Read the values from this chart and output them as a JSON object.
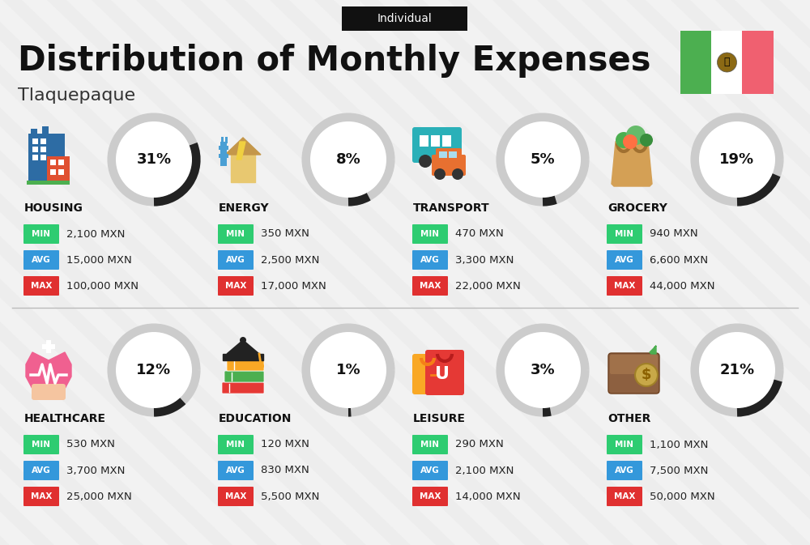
{
  "title": "Distribution of Monthly Expenses",
  "subtitle": "Individual",
  "city": "Tlaquepaque",
  "bg_color": "#f2f2f2",
  "categories": [
    {
      "name": "HOUSING",
      "pct": 31,
      "icon_type": "housing",
      "min": "2,100 MXN",
      "avg": "15,000 MXN",
      "max": "100,000 MXN",
      "row": 0,
      "col": 0
    },
    {
      "name": "ENERGY",
      "pct": 8,
      "icon_type": "energy",
      "min": "350 MXN",
      "avg": "2,500 MXN",
      "max": "17,000 MXN",
      "row": 0,
      "col": 1
    },
    {
      "name": "TRANSPORT",
      "pct": 5,
      "icon_type": "transport",
      "min": "470 MXN",
      "avg": "3,300 MXN",
      "max": "22,000 MXN",
      "row": 0,
      "col": 2
    },
    {
      "name": "GROCERY",
      "pct": 19,
      "icon_type": "grocery",
      "min": "940 MXN",
      "avg": "6,600 MXN",
      "max": "44,000 MXN",
      "row": 0,
      "col": 3
    },
    {
      "name": "HEALTHCARE",
      "pct": 12,
      "icon_type": "healthcare",
      "min": "530 MXN",
      "avg": "3,700 MXN",
      "max": "25,000 MXN",
      "row": 1,
      "col": 0
    },
    {
      "name": "EDUCATION",
      "pct": 1,
      "icon_type": "education",
      "min": "120 MXN",
      "avg": "830 MXN",
      "max": "5,500 MXN",
      "row": 1,
      "col": 1
    },
    {
      "name": "LEISURE",
      "pct": 3,
      "icon_type": "leisure",
      "min": "290 MXN",
      "avg": "2,100 MXN",
      "max": "14,000 MXN",
      "row": 1,
      "col": 2
    },
    {
      "name": "OTHER",
      "pct": 21,
      "icon_type": "other",
      "min": "1,100 MXN",
      "avg": "7,500 MXN",
      "max": "50,000 MXN",
      "row": 1,
      "col": 3
    }
  ],
  "min_color": "#2ecc71",
  "avg_color": "#3498db",
  "max_color": "#e03030",
  "arc_dark": "#222222",
  "arc_light": "#cccccc",
  "title_color": "#111111",
  "city_color": "#333333",
  "flag_green": "#4caf50",
  "flag_red": "#f06070",
  "flag_white": "#ffffff"
}
